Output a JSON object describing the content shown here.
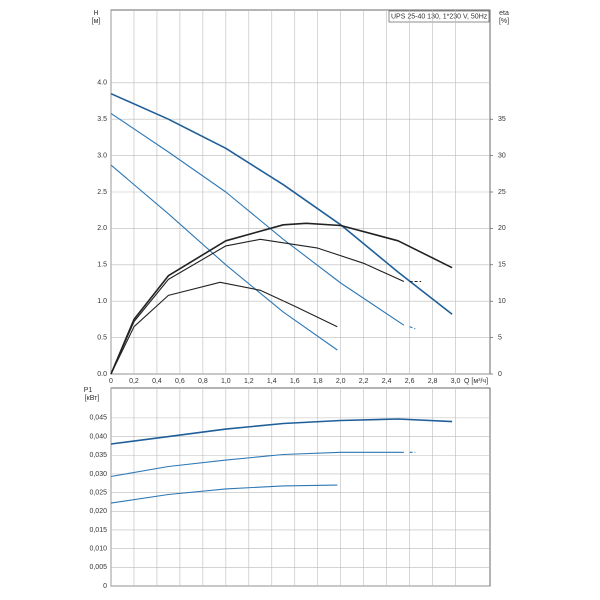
{
  "chart_data": [
    {
      "type": "line",
      "title": "UPS 25-40 130, 1*230 V, 50Hz",
      "ylabel": "H",
      "yunit": "[м]",
      "y2label": "eta",
      "y2unit": "[%]",
      "xlabel": "Q [м³/ч]",
      "xlim": [
        0,
        3.3
      ],
      "xticks": [
        0,
        {
          "value": 0.2,
          "label": "0,2"
        },
        {
          "value": 0.4,
          "label": "0,4"
        },
        {
          "value": 0.6,
          "label": "0,6"
        },
        {
          "value": 0.8,
          "label": "0,8"
        },
        {
          "value": 1.0,
          "label": "1,0"
        },
        {
          "value": 1.2,
          "label": "1,2"
        },
        {
          "value": 1.4,
          "label": "1,4"
        },
        {
          "value": 1.6,
          "label": "1,6"
        },
        {
          "value": 1.8,
          "label": "1,8"
        },
        {
          "value": 2.0,
          "label": "2,0"
        },
        {
          "value": 2.2,
          "label": "2,2"
        },
        {
          "value": 2.4,
          "label": "2,4"
        },
        {
          "value": 2.6,
          "label": "2,6"
        },
        {
          "value": 2.8,
          "label": "2,8"
        },
        {
          "value": 3.0,
          "label": "3,0"
        }
      ],
      "ylim": [
        0,
        5
      ],
      "yticks": [
        {
          "value": 0,
          "label": "0.0"
        },
        0.5,
        {
          "value": 1,
          "label": "1.0"
        },
        1.5,
        {
          "value": 2,
          "label": "2.0"
        },
        2.5,
        {
          "value": 3,
          "label": "3.0"
        },
        3.5,
        {
          "value": 4,
          "label": "4.0"
        }
      ],
      "y2lim": [
        0,
        50
      ],
      "y2ticks": [
        0,
        5,
        10,
        15,
        20,
        25,
        30,
        35
      ],
      "grid": true,
      "series": [
        {
          "color": "#1f5f99",
          "width": 1.6,
          "x": [
            0,
            0.5,
            1.0,
            1.5,
            2.0,
            2.5,
            2.97
          ],
          "values": [
            3.85,
            3.5,
            3.1,
            2.6,
            2.05,
            1.4,
            0.82
          ]
        },
        {
          "color": "#2f78b5",
          "width": 1.1,
          "x": [
            0,
            0.5,
            1.0,
            1.5,
            2.0,
            2.55
          ],
          "values": [
            3.58,
            3.05,
            2.5,
            1.85,
            1.25,
            0.67
          ]
        },
        {
          "color": "#2f78b5",
          "width": 1.1,
          "dash": true,
          "x": [
            2.6,
            2.65
          ],
          "values": [
            0.65,
            0.62
          ]
        },
        {
          "color": "#2f78b5",
          "width": 1.1,
          "x": [
            0,
            0.5,
            1.0,
            1.5,
            1.97
          ],
          "values": [
            2.87,
            2.2,
            1.5,
            0.85,
            0.33
          ]
        },
        {
          "color": "#222222",
          "width": 1.6,
          "axis": "y2",
          "x": [
            0,
            0.2,
            0.5,
            1.0,
            1.5,
            1.7,
            2.0,
            2.5,
            2.97
          ],
          "values": [
            0,
            7.5,
            13.5,
            18.3,
            20.5,
            20.7,
            20.4,
            18.3,
            14.6
          ]
        },
        {
          "color": "#222222",
          "width": 1.1,
          "axis": "y2",
          "x": [
            0,
            0.2,
            0.5,
            1.0,
            1.3,
            1.8,
            2.2,
            2.55
          ],
          "values": [
            0,
            7.2,
            13,
            17.6,
            18.5,
            17.3,
            15.2,
            12.7
          ]
        },
        {
          "color": "#222222",
          "width": 1.1,
          "axis": "y2",
          "dash": true,
          "x": [
            2.6,
            2.7
          ],
          "values": [
            12.7,
            12.7
          ]
        },
        {
          "color": "#222222",
          "width": 1.1,
          "axis": "y2",
          "x": [
            0,
            0.2,
            0.5,
            0.95,
            1.3,
            1.6,
            1.97
          ],
          "values": [
            0,
            6.5,
            10.8,
            12.6,
            11.5,
            9.3,
            6.5
          ]
        }
      ]
    },
    {
      "type": "line",
      "ylabel": "P1",
      "yunit": "[кВт]",
      "xlim": [
        0,
        3.3
      ],
      "ylim": [
        0,
        0.053
      ],
      "yticks": [
        0,
        {
          "value": 0.005,
          "label": "0,005"
        },
        {
          "value": 0.01,
          "label": "0,010"
        },
        {
          "value": 0.015,
          "label": "0,015"
        },
        {
          "value": 0.02,
          "label": "0,020"
        },
        {
          "value": 0.025,
          "label": "0,025"
        },
        {
          "value": 0.03,
          "label": "0,030"
        },
        {
          "value": 0.035,
          "label": "0,035"
        },
        {
          "value": 0.04,
          "label": "0,040"
        },
        {
          "value": 0.045,
          "label": "0,045"
        }
      ],
      "grid": true,
      "series": [
        {
          "color": "#1f5f99",
          "width": 1.6,
          "x": [
            0,
            0.5,
            1.0,
            1.5,
            2.0,
            2.5,
            2.97
          ],
          "values": [
            0.038,
            0.04,
            0.042,
            0.0435,
            0.0443,
            0.0447,
            0.044
          ]
        },
        {
          "color": "#2f78b5",
          "width": 1.1,
          "x": [
            0,
            0.5,
            1.0,
            1.5,
            2.0,
            2.55
          ],
          "values": [
            0.0293,
            0.032,
            0.0337,
            0.0352,
            0.0358,
            0.0358
          ]
        },
        {
          "color": "#2f78b5",
          "width": 1.1,
          "dash": true,
          "x": [
            2.6,
            2.65
          ],
          "values": [
            0.0358,
            0.0358
          ]
        },
        {
          "color": "#2f78b5",
          "width": 1.1,
          "x": [
            0,
            0.5,
            1.0,
            1.5,
            1.97
          ],
          "values": [
            0.0222,
            0.0245,
            0.026,
            0.0268,
            0.027
          ]
        }
      ]
    }
  ]
}
